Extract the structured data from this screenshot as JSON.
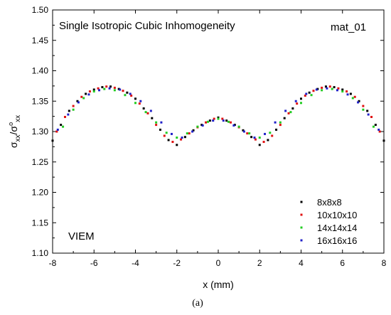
{
  "chart_data": {
    "type": "scatter",
    "title": "",
    "annotations": {
      "top_left": "Single Isotropic Cubic Inhomogeneity",
      "top_right": "mat_01",
      "bottom_left": "VIEM"
    },
    "xlabel": "x (mm)",
    "ylabel": {
      "numerator": "σ",
      "numerator_sub": "xx",
      "slash": "/σ",
      "denominator_sup": "o",
      "denominator_sub": "xx"
    },
    "xlim": [
      -8,
      8
    ],
    "ylim": [
      1.1,
      1.5
    ],
    "xticks": [
      -8,
      -6,
      -4,
      -2,
      0,
      2,
      4,
      6,
      8
    ],
    "yticks": [
      1.1,
      1.15,
      1.2,
      1.25,
      1.3,
      1.35,
      1.4,
      1.45,
      1.5
    ],
    "xtick_labels": [
      "-8",
      "-6",
      "-4",
      "-2",
      "0",
      "2",
      "4",
      "6",
      "8"
    ],
    "ytick_labels": [
      "1.10",
      "1.15",
      "1.20",
      "1.25",
      "1.30",
      "1.35",
      "1.40",
      "1.45",
      "1.50"
    ],
    "grid": false,
    "legend_position": "bottom-right",
    "series": [
      {
        "name": "8x8x8",
        "color": "#000000",
        "x": [
          -8,
          -7.6,
          -7.2,
          -6.8,
          -6.4,
          -6,
          -5.6,
          -5.2,
          -4.8,
          -4.4,
          -4,
          -3.6,
          -3.2,
          -2.8,
          -2.4,
          -2,
          -1.6,
          -1.2,
          -0.8,
          -0.4,
          0,
          0.4,
          0.8,
          1.2,
          1.6,
          2,
          2.4,
          2.8,
          3.2,
          3.6,
          4,
          4.4,
          4.8,
          5.2,
          5.6,
          6,
          6.4,
          6.8,
          7.2,
          7.6,
          8
        ],
        "y": [
          1.285,
          1.311,
          1.334,
          1.35,
          1.362,
          1.369,
          1.373,
          1.374,
          1.37,
          1.364,
          1.354,
          1.338,
          1.322,
          1.303,
          1.286,
          1.278,
          1.291,
          1.302,
          1.311,
          1.318,
          1.323,
          1.318,
          1.311,
          1.302,
          1.291,
          1.278,
          1.286,
          1.303,
          1.322,
          1.338,
          1.354,
          1.364,
          1.37,
          1.374,
          1.373,
          1.369,
          1.362,
          1.35,
          1.334,
          1.311,
          1.285
        ]
      },
      {
        "name": "10x10x10",
        "color": "#e01010",
        "x": [
          -7.8,
          -7.4,
          -7.0,
          -6.6,
          -6.2,
          -5.8,
          -5.4,
          -5.0,
          -4.6,
          -4.2,
          -3.8,
          -3.4,
          -3.0,
          -2.6,
          -2.2,
          -1.8,
          -1.4,
          -1.0,
          -0.6,
          -0.2,
          0.2,
          0.6,
          1.0,
          1.4,
          1.8,
          2.2,
          2.6,
          3.0,
          3.4,
          3.8,
          4.2,
          4.6,
          5.0,
          5.4,
          5.8,
          6.2,
          6.6,
          7.0,
          7.4,
          7.8
        ],
        "y": [
          1.3,
          1.324,
          1.342,
          1.357,
          1.366,
          1.371,
          1.374,
          1.372,
          1.367,
          1.359,
          1.346,
          1.33,
          1.311,
          1.293,
          1.283,
          1.287,
          1.297,
          1.307,
          1.315,
          1.321,
          1.321,
          1.315,
          1.307,
          1.297,
          1.287,
          1.283,
          1.293,
          1.311,
          1.33,
          1.346,
          1.359,
          1.367,
          1.372,
          1.374,
          1.371,
          1.366,
          1.357,
          1.342,
          1.324,
          1.3
        ]
      },
      {
        "name": "14x14x14",
        "color": "#22cc22",
        "x": [
          -7.5,
          -7.0,
          -6.5,
          -6.0,
          -5.5,
          -5.0,
          -4.5,
          -4.0,
          -3.5,
          -3.0,
          -2.5,
          -2.0,
          -1.5,
          -1.0,
          -0.5,
          0,
          0.5,
          1.0,
          1.5,
          2.0,
          2.5,
          3.0,
          3.5,
          4.0,
          4.5,
          5.0,
          5.5,
          6.0,
          6.5,
          7.0,
          7.5
        ],
        "y": [
          1.308,
          1.336,
          1.355,
          1.366,
          1.37,
          1.368,
          1.36,
          1.347,
          1.332,
          1.315,
          1.298,
          1.29,
          1.297,
          1.308,
          1.316,
          1.321,
          1.316,
          1.308,
          1.297,
          1.29,
          1.298,
          1.315,
          1.332,
          1.347,
          1.36,
          1.368,
          1.37,
          1.366,
          1.355,
          1.336,
          1.308
        ]
      },
      {
        "name": "16x16x16",
        "color": "#2020c8",
        "x": [
          -7.75,
          -7.25,
          -6.75,
          -6.25,
          -5.75,
          -5.25,
          -4.75,
          -4.25,
          -3.75,
          -3.25,
          -2.75,
          -2.25,
          -1.75,
          -1.25,
          -0.75,
          -0.25,
          0.25,
          0.75,
          1.25,
          1.75,
          2.25,
          2.75,
          3.25,
          3.75,
          4.25,
          4.75,
          5.25,
          5.75,
          6.25,
          6.75,
          7.25,
          7.75
        ],
        "y": [
          1.303,
          1.328,
          1.348,
          1.361,
          1.368,
          1.371,
          1.369,
          1.362,
          1.35,
          1.334,
          1.315,
          1.296,
          1.29,
          1.3,
          1.31,
          1.318,
          1.318,
          1.31,
          1.3,
          1.29,
          1.296,
          1.315,
          1.334,
          1.35,
          1.362,
          1.369,
          1.371,
          1.368,
          1.361,
          1.348,
          1.328,
          1.303
        ]
      }
    ]
  },
  "caption": "(a)"
}
